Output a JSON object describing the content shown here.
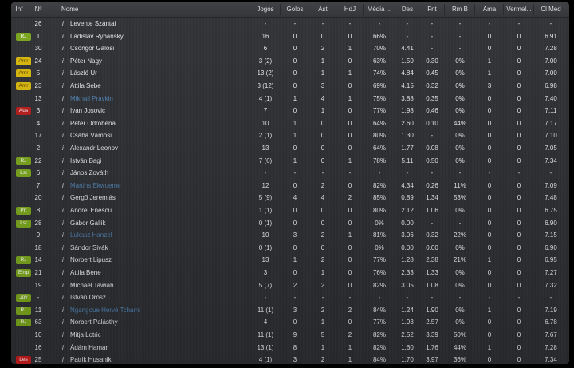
{
  "colors": {
    "RJ": "#7aa51c",
    "Lst": "#7aa51c",
    "Prt": "#7aa51c",
    "Emp": "#7aa51c",
    "Jov": "#7aa51c",
    "Amr": "#d8b80a",
    "Aus": "#b81c1c",
    "Les": "#c81c1c",
    "link": "#4f7fae"
  },
  "headers": [
    "Inf",
    "Nº",
    "Nome",
    "Jogos",
    "Golos",
    "Ast",
    "HdJ",
    "Média ...",
    "Des",
    "Fnt",
    "Rm B",
    "Ama",
    "Vermel...",
    "Cl Med"
  ],
  "info_icon": "i",
  "rows": [
    {
      "inf": "",
      "no": "26",
      "name": "Levente Szántai",
      "link": false,
      "v": [
        "-",
        "-",
        "-",
        "-",
        "-",
        "-",
        "-",
        "-",
        "-",
        "-",
        "-"
      ]
    },
    {
      "inf": "RJ",
      "no": "1",
      "name": "Ladislav Rybansky",
      "link": false,
      "v": [
        "16",
        "0",
        "0",
        "0",
        "66%",
        "-",
        "-",
        "-",
        "0",
        "0",
        "6.91"
      ]
    },
    {
      "inf": "",
      "no": "30",
      "name": "Csongor Gálosi",
      "link": false,
      "v": [
        "6",
        "0",
        "2",
        "1",
        "70%",
        "4.41",
        "-",
        "-",
        "0",
        "0",
        "7.28"
      ]
    },
    {
      "inf": "Amr",
      "no": "24",
      "name": "Péter Nagy",
      "link": false,
      "v": [
        "3 (2)",
        "0",
        "1",
        "0",
        "63%",
        "1.50",
        "0.30",
        "0%",
        "1",
        "0",
        "7.00"
      ]
    },
    {
      "inf": "Amr",
      "no": "5",
      "name": "László Ur",
      "link": false,
      "v": [
        "13 (2)",
        "0",
        "1",
        "1",
        "74%",
        "4.84",
        "0.45",
        "0%",
        "1",
        "0",
        "7.00"
      ]
    },
    {
      "inf": "Amr",
      "no": "23",
      "name": "Attila Sebe",
      "link": false,
      "v": [
        "3 (12)",
        "0",
        "3",
        "0",
        "69%",
        "4.15",
        "0.32",
        "0%",
        "3",
        "0",
        "6.98"
      ]
    },
    {
      "inf": "",
      "no": "13",
      "name": "Mikhail Pravkin",
      "link": true,
      "v": [
        "4 (1)",
        "1",
        "4",
        "1",
        "75%",
        "3.88",
        "0.35",
        "0%",
        "0",
        "0",
        "7.40"
      ]
    },
    {
      "inf": "Aus",
      "no": "3",
      "name": "Ivan Josovic",
      "link": false,
      "v": [
        "7",
        "0",
        "1",
        "0",
        "77%",
        "1.98",
        "0.46",
        "0%",
        "0",
        "0",
        "7.11"
      ]
    },
    {
      "inf": "",
      "no": "4",
      "name": "Péter Odrobéna",
      "link": false,
      "v": [
        "10",
        "1",
        "0",
        "0",
        "64%",
        "2.60",
        "0.10",
        "44%",
        "0",
        "0",
        "7.17"
      ]
    },
    {
      "inf": "",
      "no": "17",
      "name": "Csaba Vámosi",
      "link": false,
      "v": [
        "2 (1)",
        "1",
        "0",
        "0",
        "80%",
        "1.30",
        "-",
        "0%",
        "0",
        "0",
        "7.10"
      ]
    },
    {
      "inf": "",
      "no": "2",
      "name": "Alexandr Leonov",
      "link": false,
      "v": [
        "13",
        "0",
        "0",
        "0",
        "64%",
        "1.77",
        "0.08",
        "0%",
        "0",
        "0",
        "7.05"
      ]
    },
    {
      "inf": "RJ",
      "no": "22",
      "name": "István Bagi",
      "link": false,
      "v": [
        "7 (6)",
        "1",
        "0",
        "1",
        "78%",
        "5.11",
        "0.50",
        "0%",
        "0",
        "0",
        "7.34"
      ]
    },
    {
      "inf": "Lst",
      "no": "6",
      "name": "János Zováth",
      "link": false,
      "v": [
        "-",
        "-",
        "-",
        "-",
        "-",
        "-",
        "-",
        "-",
        "-",
        "-",
        "-"
      ]
    },
    {
      "inf": "",
      "no": "7",
      "name": "Martins Ekwueme",
      "link": true,
      "v": [
        "12",
        "0",
        "2",
        "0",
        "82%",
        "4.34",
        "0.26",
        "11%",
        "0",
        "0",
        "7.09"
      ]
    },
    {
      "inf": "",
      "no": "20",
      "name": "Gergő Jeremiás",
      "link": false,
      "v": [
        "5 (9)",
        "4",
        "4",
        "2",
        "85%",
        "0.89",
        "1.34",
        "53%",
        "0",
        "0",
        "7.48"
      ]
    },
    {
      "inf": "Prt",
      "no": "8",
      "name": "Andrei Enescu",
      "link": false,
      "v": [
        "1 (1)",
        "0",
        "0",
        "0",
        "80%",
        "2.12",
        "1.06",
        "0%",
        "0",
        "0",
        "6.75"
      ]
    },
    {
      "inf": "Lst",
      "no": "28",
      "name": "Gábor Gallik",
      "link": false,
      "v": [
        "0 (1)",
        "0",
        "0",
        "0",
        "0%",
        "0.00",
        "-",
        "-",
        "0",
        "0",
        "6.90"
      ]
    },
    {
      "inf": "",
      "no": "9",
      "name": "Lukasz Hanzel",
      "link": true,
      "v": [
        "10",
        "3",
        "2",
        "1",
        "81%",
        "3.06",
        "0.32",
        "22%",
        "0",
        "0",
        "7.15"
      ]
    },
    {
      "inf": "",
      "no": "18",
      "name": "Sándor Sivák",
      "link": false,
      "v": [
        "0 (1)",
        "0",
        "0",
        "0",
        "0%",
        "0.00",
        "0.00",
        "0%",
        "0",
        "0",
        "6.90"
      ]
    },
    {
      "inf": "RJ",
      "no": "14",
      "name": "Norbert Lipusz",
      "link": false,
      "v": [
        "13",
        "1",
        "2",
        "0",
        "77%",
        "1.28",
        "2.38",
        "21%",
        "1",
        "0",
        "6.95"
      ]
    },
    {
      "inf": "Emp",
      "no": "21",
      "name": "Attila Bene",
      "link": false,
      "v": [
        "3",
        "0",
        "1",
        "0",
        "76%",
        "2.33",
        "1.33",
        "0%",
        "0",
        "0",
        "7.27"
      ]
    },
    {
      "inf": "",
      "no": "19",
      "name": "Michael Tawiah",
      "link": false,
      "v": [
        "5 (7)",
        "2",
        "2",
        "0",
        "82%",
        "3.05",
        "1.08",
        "0%",
        "0",
        "0",
        "7.32"
      ]
    },
    {
      "inf": "Jov",
      "no": "-",
      "name": "István Orosz",
      "link": false,
      "v": [
        "-",
        "-",
        "-",
        "-",
        "-",
        "-",
        "-",
        "-",
        "-",
        "-",
        "-"
      ]
    },
    {
      "inf": "RJ",
      "no": "11",
      "name": "Ngangoue Hervé Tchami",
      "link": true,
      "v": [
        "11 (1)",
        "3",
        "2",
        "2",
        "84%",
        "1.24",
        "1.90",
        "0%",
        "1",
        "0",
        "7.19"
      ]
    },
    {
      "inf": "RJ",
      "no": "63",
      "name": "Norbert Palásthy",
      "link": false,
      "v": [
        "4",
        "0",
        "1",
        "0",
        "77%",
        "1.93",
        "2.57",
        "0%",
        "0",
        "0",
        "6.78"
      ]
    },
    {
      "inf": "",
      "no": "10",
      "name": "Mitja Lotric",
      "link": false,
      "v": [
        "11 (1)",
        "9",
        "5",
        "2",
        "82%",
        "2.52",
        "3.39",
        "50%",
        "0",
        "0",
        "7.67"
      ]
    },
    {
      "inf": "",
      "no": "16",
      "name": "Ádám Hamar",
      "link": false,
      "v": [
        "13 (1)",
        "8",
        "1",
        "1",
        "82%",
        "1.60",
        "1.76",
        "44%",
        "1",
        "0",
        "7.28"
      ]
    },
    {
      "inf": "Les",
      "no": "25",
      "name": "Patrik Husanik",
      "link": false,
      "v": [
        "4 (1)",
        "3",
        "2",
        "1",
        "84%",
        "1.70",
        "3.97",
        "36%",
        "0",
        "0",
        "7.34"
      ]
    }
  ]
}
